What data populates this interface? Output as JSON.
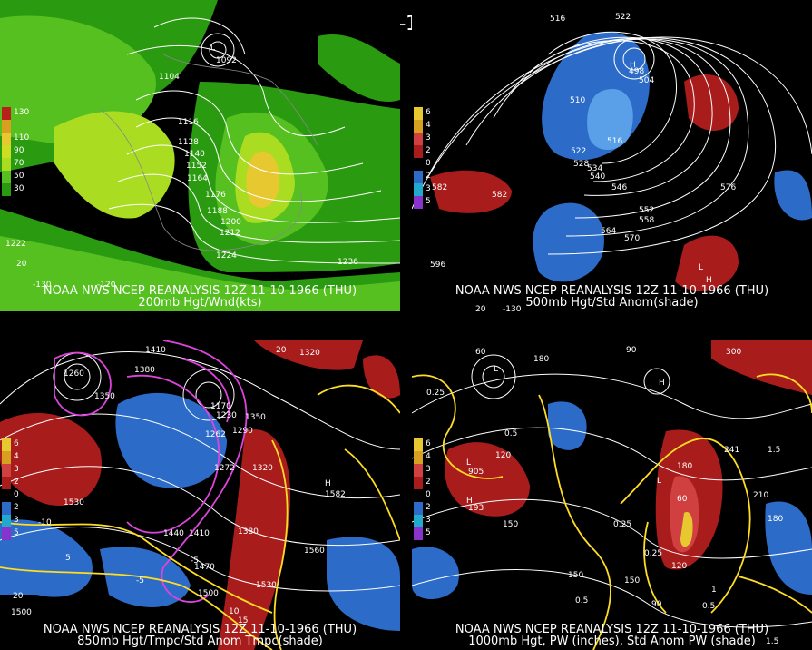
{
  "main_title": "12Z 11-10-1966 (THU)",
  "panels": {
    "p200": {
      "caption_line1": "NOAA NWS NCEP REANALYSIS 12Z 11-10-1966 (THU)",
      "caption_line2": "200mb Hgt/Wnd(kts)",
      "legend": [
        "130",
        "110",
        "90",
        "70",
        "50",
        "30"
      ],
      "legend_colors": [
        "#b8201c",
        "#d8a020",
        "#e8c830",
        "#aadd22",
        "#55c020",
        "#2a9a10"
      ],
      "contour_labels": [
        "1092",
        "1104",
        "1116",
        "1128",
        "1140",
        "1152",
        "1164",
        "1176",
        "1188",
        "1200",
        "1212",
        "1224",
        "1236",
        "20",
        "1222",
        "L",
        "-130",
        "-120"
      ]
    },
    "p500": {
      "caption_line1": "NOAA NWS NCEP REANALYSIS 12Z 11-10-1966 (THU)",
      "caption_line2": "500mb Hgt/Std Anom(shade)",
      "legend": [
        "6",
        "4",
        "3",
        "2",
        "1",
        "0",
        "1",
        "2",
        "3",
        "4",
        "5"
      ],
      "contour_labels": [
        "516",
        "522",
        "498",
        "504",
        "510",
        "516",
        "522",
        "528",
        "534",
        "540",
        "546",
        "552",
        "558",
        "564",
        "570",
        "576",
        "582",
        "582",
        "H",
        "L",
        "H",
        "596",
        "20",
        "-130",
        "-120"
      ]
    },
    "p850": {
      "caption_line1": "NOAA NWS NCEP REANALYSIS 12Z 11-10-1966 (THU)",
      "caption_line2": "850mb Hgt/Tmpc/Std Anom Tmpc(shade)",
      "legend": [
        "6",
        "4",
        "3",
        "2",
        "1",
        "0",
        "1",
        "2",
        "3",
        "4",
        "5"
      ],
      "contour_labels": [
        "1410",
        "1380",
        "1350",
        "1260",
        "1170",
        "1230",
        "1290",
        "1350",
        "1320",
        "1320",
        "1262",
        "1272",
        "1530",
        "1440",
        "1410",
        "1380",
        "1470",
        "1560",
        "1500",
        "1500",
        "1530",
        "20",
        "-10",
        "-5",
        "-5",
        "5",
        "10",
        "15",
        "20",
        "H",
        "1582",
        "H",
        "L"
      ]
    },
    "p1000": {
      "caption_line1": "NOAA NWS NCEP REANALYSIS 12Z 11-10-1966 (THU)",
      "caption_line2": "1000mb Hgt, PW (inches), Std Anom PW (shade)",
      "legend": [
        "6",
        "4",
        "3",
        "2",
        "1",
        "0",
        "1",
        "2",
        "3",
        "4",
        "5"
      ],
      "contour_labels": [
        "60",
        "90",
        "180",
        "300",
        "0.25",
        "0.5",
        "0.25",
        "0.25",
        "0.5",
        "0.5",
        "1",
        "1.5",
        "120",
        "150",
        "180",
        "210",
        "180",
        "150",
        "150",
        "90",
        "60",
        "120",
        "L",
        "H",
        "L",
        "L",
        "H",
        "905",
        "193",
        "241",
        "1.5"
      ]
    }
  },
  "colors": {
    "background": "#000000",
    "contour_white": "#ffffff",
    "contour_yellow": "#ffdd22",
    "contour_magenta": "#dd44dd",
    "anom_red": "#a81c1c",
    "anom_blue": "#2c6cc8",
    "wind_green": "#2a9a10"
  }
}
